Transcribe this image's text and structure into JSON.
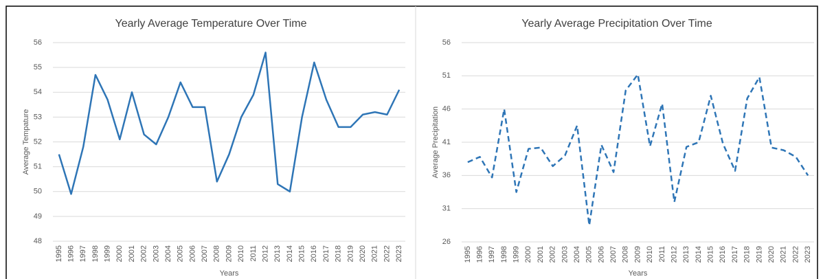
{
  "chart_data": [
    {
      "type": "line",
      "title": "Yearly Average Temperature Over Time",
      "x_label": "Years",
      "y_label": "Average Tempature",
      "categories": [
        "1995",
        "1996",
        "1997",
        "1998",
        "1999",
        "2000",
        "2001",
        "2002",
        "2003",
        "2004",
        "2005",
        "2006",
        "2007",
        "2008",
        "2009",
        "2010",
        "2011",
        "2012",
        "2013",
        "2014",
        "2015",
        "2016",
        "2017",
        "2018",
        "2019",
        "2020",
        "2021",
        "2022",
        "2023"
      ],
      "values": [
        51.5,
        49.9,
        51.8,
        54.7,
        53.7,
        52.1,
        54.0,
        52.3,
        51.9,
        53.0,
        54.4,
        53.4,
        53.4,
        50.4,
        51.5,
        53.0,
        53.9,
        55.6,
        50.3,
        50.0,
        53.0,
        55.2,
        53.7,
        52.6,
        52.6,
        53.1,
        53.2,
        53.1,
        54.1
      ],
      "color": "#2e75b6",
      "line_style": "solid",
      "ylim": [
        48,
        56
      ],
      "yticks": [
        48,
        49,
        50,
        51,
        52,
        53,
        54,
        55,
        56
      ],
      "grid": true
    },
    {
      "type": "line",
      "title": "Yearly Average Precipitation Over Time",
      "x_label": "Years",
      "y_label": "Average Precipitation",
      "categories": [
        "1995",
        "1996",
        "1997",
        "1998",
        "1999",
        "2000",
        "2001",
        "2002",
        "2003",
        "2004",
        "2005",
        "2006",
        "2007",
        "2008",
        "2009",
        "2010",
        "2011",
        "2012",
        "2013",
        "2014",
        "2015",
        "2016",
        "2017",
        "2018",
        "2019",
        "2020",
        "2021",
        "2022",
        "2023"
      ],
      "values": [
        38.0,
        38.8,
        35.7,
        46.0,
        33.5,
        40.0,
        40.2,
        37.4,
        39.0,
        43.5,
        28.5,
        40.6,
        36.5,
        48.8,
        51.2,
        40.4,
        46.8,
        32.0,
        40.3,
        41.0,
        48.0,
        40.8,
        36.7,
        47.6,
        50.8,
        40.2,
        39.8,
        38.8,
        36.0
      ],
      "color": "#2e75b6",
      "line_style": "dashed",
      "ylim": [
        26,
        56
      ],
      "yticks": [
        26,
        31,
        36,
        41,
        46,
        51,
        56
      ],
      "grid": true
    }
  ]
}
